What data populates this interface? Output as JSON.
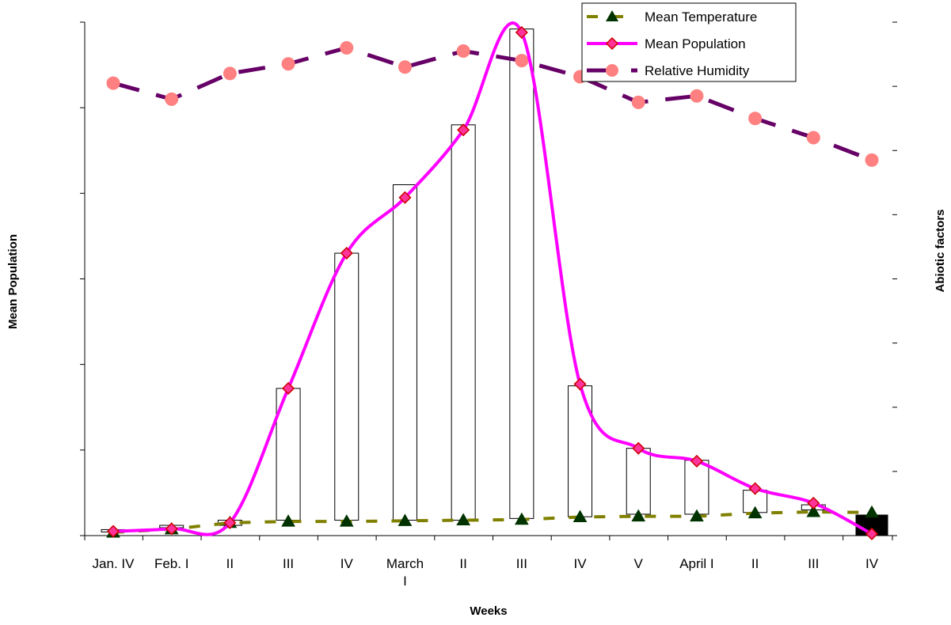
{
  "chart_data": {
    "type": "bar",
    "title": "",
    "xlabel": "Weeks",
    "ylabel": "Mean Population",
    "y2label": "Abiotic factors",
    "categories": [
      "Jan. IV",
      "Feb. I",
      "II",
      "III",
      "IV",
      "March I",
      "II",
      "III",
      "IV",
      "V",
      "April I",
      "II",
      "III",
      "IV"
    ],
    "left_axis": {
      "min": 0,
      "max": 6,
      "ticks": 7
    },
    "right_axis": {
      "min": 0,
      "max": 80,
      "ticks": 9
    },
    "bars": {
      "low": [
        0.05,
        0.1,
        0.12,
        0.18,
        0.18,
        0.18,
        0.18,
        0.2,
        0.22,
        0.25,
        0.25,
        0.27,
        0.3,
        0.28
      ],
      "high": [
        0.07,
        0.12,
        0.18,
        1.72,
        3.3,
        4.1,
        4.8,
        5.92,
        1.75,
        1.02,
        0.88,
        0.53,
        0.36,
        0.28
      ]
    },
    "series": [
      {
        "name": "Mean Temperature",
        "axis": "right",
        "values": [
          0.5,
          1.0,
          2.0,
          2.2,
          2.2,
          2.3,
          2.4,
          2.5,
          2.9,
          3.0,
          3.0,
          3.5,
          3.7,
          3.6
        ]
      },
      {
        "name": "Mean Population",
        "axis": "left",
        "values": [
          0.05,
          0.08,
          0.15,
          1.72,
          3.3,
          3.95,
          4.74,
          5.88,
          1.77,
          1.02,
          0.87,
          0.55,
          0.38,
          0.02
        ]
      },
      {
        "name": "Relative Humidity",
        "axis": "right",
        "values": [
          70.5,
          68.0,
          72.0,
          73.5,
          76.0,
          73.0,
          75.5,
          74.0,
          71.5,
          67.5,
          68.5,
          65.0,
          62.0,
          58.5
        ]
      }
    ],
    "legend_position": "top-right",
    "grid": false
  },
  "colors": {
    "temperature_line": "#808000",
    "temperature_marker": "#003300",
    "population_line": "#FF00FF",
    "population_marker_fill": "#FF3399",
    "population_marker_stroke": "#CC0000",
    "humidity_line": "#660066",
    "humidity_marker": "#FF8080",
    "bar_fill": "#ffffff",
    "last_bar_fill": "#000000"
  }
}
